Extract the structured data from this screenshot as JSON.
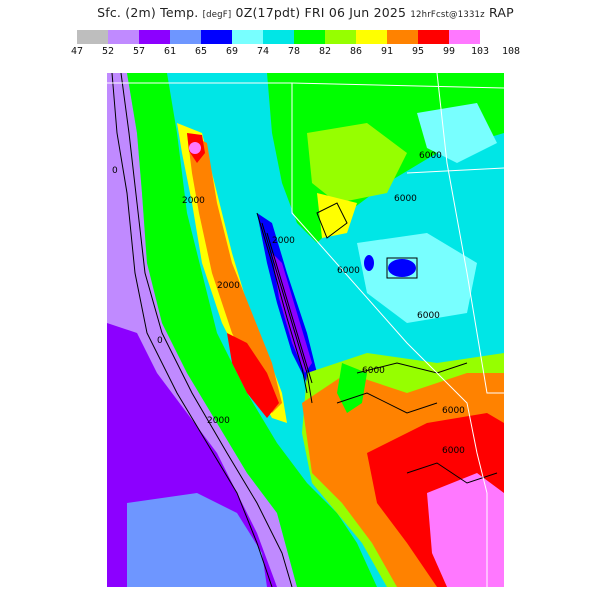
{
  "title": {
    "main": "Sfc. (2m) Temp.",
    "unit": "[degF]",
    "init": "0Z(17pdt)",
    "date": "FRI 06 Jun 2025",
    "forecast": "12hrFcst@1331z",
    "model": "RAP"
  },
  "legend": {
    "bins": [
      {
        "color": "#bebebe"
      },
      {
        "color": "#c08aff"
      },
      {
        "color": "#8c00ff"
      },
      {
        "color": "#6e96ff"
      },
      {
        "color": "#0000ff"
      },
      {
        "color": "#78ffff"
      },
      {
        "color": "#00e6e6"
      },
      {
        "color": "#00ff00"
      },
      {
        "color": "#96ff00"
      },
      {
        "color": "#ffff00"
      },
      {
        "color": "#ff8200"
      },
      {
        "color": "#ff0000"
      },
      {
        "color": "#ff78ff"
      }
    ],
    "ticks": [
      "47",
      "52",
      "57",
      "61",
      "65",
      "69",
      "74",
      "78",
      "82",
      "86",
      "91",
      "95",
      "99",
      "103",
      "108"
    ]
  },
  "map": {
    "ocean_color": "#8c00ff",
    "contour_labels": [
      "6000",
      "6000",
      "6000",
      "6000",
      "6000",
      "6000",
      "6000",
      "2000",
      "2000",
      "2000",
      "2000",
      "0",
      "0"
    ]
  }
}
